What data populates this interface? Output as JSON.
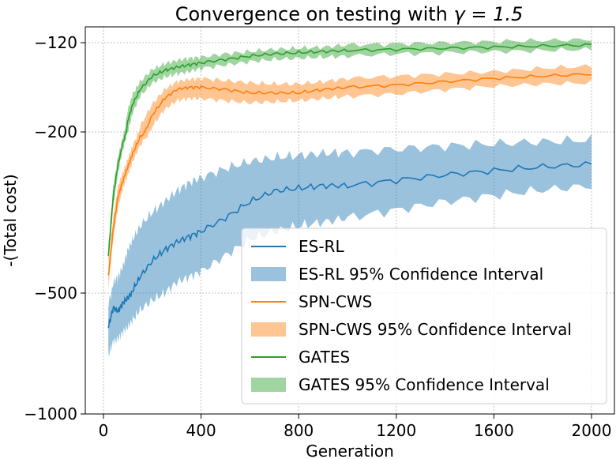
{
  "chart_data": {
    "type": "line",
    "title": "Convergence on testing with",
    "title_math": "γ = 1.5",
    "xlabel": "Generation",
    "ylabel": "-(Total cost)",
    "xlim": [
      -40,
      2050
    ],
    "x_ticks": [
      0,
      400,
      800,
      1200,
      1600,
      2000
    ],
    "x_tick_labels": [
      "0",
      "400",
      "800",
      "1200",
      "1600",
      "2000"
    ],
    "y_ticks": [
      -120,
      -200,
      -500,
      -1000
    ],
    "y_tick_labels": [
      "−120",
      "−200",
      "−500",
      "−1000"
    ],
    "y_scale": "symlog-like (nonlinear)",
    "grid": true,
    "legend_position": "lower-right",
    "x": [
      20,
      40,
      60,
      80,
      100,
      120,
      150,
      200,
      250,
      300,
      350,
      400,
      500,
      600,
      700,
      800,
      900,
      1000,
      1200,
      1400,
      1600,
      1800,
      2000
    ],
    "series": [
      {
        "name": "ES-RL",
        "ci_name": "ES-RL 95% Confidence Interval",
        "color": "#1f77b4",
        "ci_color": "#1f77b4",
        "values": [
          -640,
          -560,
          -575,
          -540,
          -520,
          -495,
          -470,
          -440,
          -420,
          -405,
          -395,
          -385,
          -360,
          -330,
          -310,
          -305,
          -300,
          -300,
          -290,
          -280,
          -272,
          -265,
          -260
        ],
        "lower": [
          -760,
          -700,
          -690,
          -660,
          -640,
          -610,
          -570,
          -530,
          -500,
          -480,
          -470,
          -460,
          -430,
          -400,
          -385,
          -375,
          -368,
          -360,
          -345,
          -330,
          -318,
          -308,
          -300
        ],
        "upper": [
          -540,
          -480,
          -470,
          -450,
          -420,
          -400,
          -375,
          -350,
          -330,
          -310,
          -295,
          -285,
          -268,
          -255,
          -248,
          -244,
          -240,
          -238,
          -232,
          -226,
          -222,
          -218,
          -215
        ]
      },
      {
        "name": "SPN-CWS",
        "ci_name": "SPN-CWS 95% Confidence Interval",
        "color": "#ff7f0e",
        "ci_color": "#ff7f0e",
        "values": [
          -470,
          -380,
          -320,
          -290,
          -265,
          -240,
          -210,
          -185,
          -170,
          -162,
          -160,
          -160,
          -162,
          -165,
          -165,
          -165,
          -162,
          -160,
          -158,
          -155,
          -152,
          -150,
          -148
        ],
        "lower": [
          -490,
          -400,
          -340,
          -305,
          -280,
          -255,
          -225,
          -195,
          -180,
          -172,
          -170,
          -170,
          -172,
          -174,
          -173,
          -172,
          -170,
          -168,
          -166,
          -162,
          -159,
          -157,
          -156
        ],
        "upper": [
          -450,
          -360,
          -300,
          -275,
          -250,
          -225,
          -195,
          -175,
          -162,
          -155,
          -153,
          -152,
          -154,
          -156,
          -157,
          -157,
          -155,
          -152,
          -150,
          -148,
          -146,
          -143,
          -141
        ]
      },
      {
        "name": "GATES",
        "ci_name": "GATES 95% Confidence Interval",
        "color": "#2ca02c",
        "ci_color": "#2ca02c",
        "values": [
          -430,
          -320,
          -260,
          -220,
          -190,
          -175,
          -162,
          -150,
          -145,
          -142,
          -140,
          -138,
          -135,
          -132,
          -130,
          -129,
          -128,
          -127,
          -126,
          -125,
          -124,
          -123,
          -122
        ],
        "lower": [
          -445,
          -340,
          -275,
          -232,
          -200,
          -183,
          -168,
          -156,
          -151,
          -148,
          -146,
          -143,
          -140,
          -137,
          -135,
          -134,
          -133,
          -132,
          -130,
          -129,
          -128,
          -127,
          -126
        ],
        "upper": [
          -415,
          -300,
          -245,
          -208,
          -180,
          -166,
          -155,
          -144,
          -139,
          -136,
          -134,
          -133,
          -130,
          -128,
          -126,
          -125,
          -124,
          -122,
          -121,
          -120,
          -119,
          -118,
          -117
        ]
      }
    ]
  }
}
